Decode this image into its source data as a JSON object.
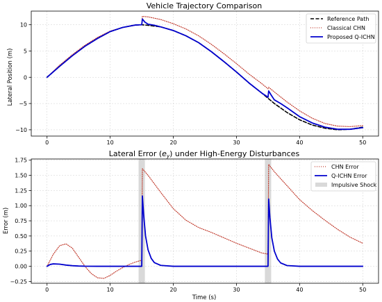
{
  "chart_data": [
    {
      "type": "line",
      "title": "Vehicle Trajectory Comparison",
      "xlabel": "",
      "ylabel": "Lateral Position (m)",
      "xlim": [
        -2.5,
        52.5
      ],
      "ylim": [
        -11.2,
        12.6
      ],
      "xticks": [
        0,
        10,
        20,
        30,
        40,
        50
      ],
      "yticks": [
        -10,
        -5,
        0,
        5,
        10
      ],
      "xtick_labels": [
        "0",
        "10",
        "20",
        "30",
        "40",
        "50"
      ],
      "ytick_labels": [
        "−10",
        "−5",
        "0",
        "5",
        "10"
      ],
      "grid": true,
      "legend_position": "top-right",
      "series": [
        {
          "name": "Reference Path",
          "color": "#000000",
          "style": "dashed",
          "x": [
            0,
            2,
            4,
            6,
            8,
            10,
            12,
            14,
            15,
            16,
            18,
            20,
            22,
            24,
            26,
            28,
            30,
            32,
            34,
            36,
            38,
            40,
            42,
            44,
            46,
            48,
            50
          ],
          "y": [
            0,
            2.1,
            4.1,
            5.9,
            7.4,
            8.7,
            9.5,
            9.95,
            10.0,
            9.9,
            9.6,
            8.9,
            7.9,
            6.6,
            4.9,
            3.0,
            1.0,
            -1.1,
            -3.0,
            -5.0,
            -6.7,
            -8.1,
            -9.1,
            -9.7,
            -10.0,
            -9.9,
            -9.5
          ]
        },
        {
          "name": "Classical CHN",
          "color": "#c0392b",
          "style": "dotted",
          "x": [
            0,
            2,
            4,
            6,
            8,
            10,
            12,
            14,
            15,
            15.1,
            16,
            18,
            20,
            22,
            24,
            26,
            28,
            30,
            32,
            34,
            35,
            35.1,
            36,
            38,
            40,
            42,
            44,
            46,
            48,
            50
          ],
          "y": [
            0,
            2.3,
            4.3,
            6.1,
            7.6,
            8.8,
            9.5,
            9.9,
            10.0,
            11.6,
            11.5,
            11.0,
            10.2,
            9.2,
            7.9,
            6.3,
            4.5,
            2.6,
            0.6,
            -1.2,
            -2.2,
            -1.9,
            -2.8,
            -4.7,
            -6.4,
            -7.8,
            -8.8,
            -9.3,
            -9.4,
            -9.2
          ]
        },
        {
          "name": "Proposed Q-ICHN",
          "color": "#0000cd",
          "style": "solid",
          "x": [
            0,
            2,
            4,
            6,
            8,
            10,
            12,
            14,
            15,
            15.1,
            15.5,
            16,
            17,
            18,
            20,
            22,
            24,
            26,
            28,
            30,
            32,
            34,
            35,
            35.1,
            35.5,
            36,
            37,
            38,
            40,
            42,
            44,
            46,
            48,
            50
          ],
          "y": [
            0,
            2.1,
            4.1,
            5.9,
            7.4,
            8.7,
            9.5,
            9.95,
            10.0,
            11.1,
            10.5,
            10.1,
            9.9,
            9.6,
            8.9,
            7.9,
            6.6,
            4.9,
            3.0,
            1.0,
            -1.1,
            -3.0,
            -3.8,
            -2.6,
            -3.4,
            -4.3,
            -5.0,
            -5.8,
            -7.5,
            -8.7,
            -9.5,
            -9.9,
            -9.9,
            -9.6
          ]
        }
      ]
    },
    {
      "type": "line",
      "title": "Lateral Error (",
      "title_math": "e",
      "title_sub": "y",
      "title_tail": ") under High-Energy Disturbances",
      "xlabel": "Time (s)",
      "ylabel": "Error (m)",
      "xlim": [
        -2.5,
        52.5
      ],
      "ylim": [
        -0.28,
        1.77
      ],
      "xticks": [
        0,
        10,
        20,
        30,
        40,
        50
      ],
      "yticks": [
        -0.25,
        0.0,
        0.25,
        0.5,
        0.75,
        1.0,
        1.25,
        1.5,
        1.75
      ],
      "xtick_labels": [
        "0",
        "10",
        "20",
        "30",
        "40",
        "50"
      ],
      "ytick_labels": [
        "−0.25",
        "0.00",
        "0.25",
        "0.50",
        "0.75",
        "1.00",
        "1.25",
        "1.50",
        "1.75"
      ],
      "grid": true,
      "legend_position": "top-right",
      "shaded_regions": [
        {
          "name": "Impulsive Shock",
          "x0": 14.5,
          "x1": 15.5,
          "color": "#d9d9d9"
        },
        {
          "name": "Impulsive Shock",
          "x0": 34.5,
          "x1": 35.5,
          "color": "#d9d9d9"
        }
      ],
      "series": [
        {
          "name": "CHN Error",
          "color": "#c0392b",
          "style": "dotted",
          "x": [
            0,
            1,
            2,
            3,
            4,
            5,
            6,
            7,
            8,
            9,
            10,
            11,
            12,
            13,
            14,
            15,
            15.1,
            16,
            18,
            20,
            22,
            24,
            26,
            28,
            30,
            32,
            34,
            35,
            35.1,
            36,
            38,
            40,
            42,
            44,
            46,
            48,
            50
          ],
          "y": [
            0,
            0.2,
            0.34,
            0.37,
            0.3,
            0.15,
            0.0,
            -0.12,
            -0.19,
            -0.2,
            -0.15,
            -0.08,
            -0.02,
            0.03,
            0.07,
            0.1,
            1.61,
            1.5,
            1.22,
            0.95,
            0.76,
            0.64,
            0.56,
            0.47,
            0.38,
            0.3,
            0.22,
            0.2,
            1.68,
            1.56,
            1.33,
            1.1,
            0.92,
            0.76,
            0.61,
            0.48,
            0.38
          ]
        },
        {
          "name": "Q-ICHN Error",
          "color": "#0000cd",
          "style": "solid",
          "x": [
            0,
            0.5,
            1,
            2,
            3,
            4,
            5,
            6,
            8,
            10,
            12,
            14,
            15,
            15.1,
            15.3,
            15.6,
            16,
            16.5,
            17,
            18,
            20,
            25,
            30,
            34,
            35,
            35.1,
            35.3,
            35.6,
            36,
            36.5,
            37,
            38,
            40,
            45,
            50
          ],
          "y": [
            0,
            0.03,
            0.04,
            0.035,
            0.02,
            0.01,
            0.004,
            0.001,
            0.0,
            0.0,
            0.0,
            0.0,
            0.0,
            1.16,
            0.85,
            0.5,
            0.27,
            0.13,
            0.06,
            0.015,
            0.0,
            0.0,
            0.0,
            0.0,
            0.0,
            1.11,
            0.8,
            0.47,
            0.25,
            0.12,
            0.055,
            0.012,
            0.0,
            0.0,
            0.0
          ]
        }
      ],
      "legend_entries": [
        "CHN Error",
        "Q-ICHN Error",
        "Impulsive Shock"
      ]
    }
  ]
}
